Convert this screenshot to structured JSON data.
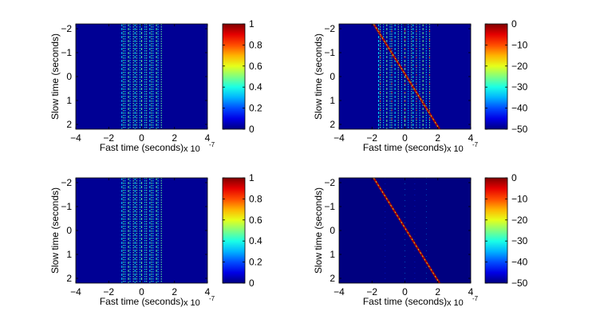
{
  "figure": {
    "title": ""
  },
  "chart_data": [
    {
      "id": "top-left",
      "type": "heatmap",
      "title": "",
      "xlabel": "Fast time (seconds)",
      "ylabel": "Slow time (seconds)",
      "x_exponent_label": "x 10",
      "x_exponent": "-7",
      "xlim": [
        -4,
        4
      ],
      "ylim": [
        -2.2,
        2.2
      ],
      "xticks": [
        -4,
        -2,
        0,
        2,
        4
      ],
      "xtick_labels": [
        "−4",
        "−2",
        "0",
        "2",
        "4"
      ],
      "yticks": [
        -2,
        -1,
        0,
        1,
        2
      ],
      "ytick_labels": [
        "−2",
        "−1",
        "0",
        "1",
        "2"
      ],
      "y_reversed": true,
      "colorbar": {
        "min": 0,
        "max": 1,
        "ticks": [
          0,
          0.2,
          0.4,
          0.6,
          0.8,
          1
        ],
        "tick_labels": [
          "0",
          "0.2",
          "0.4",
          "0.6",
          "0.8",
          "1"
        ]
      },
      "content": {
        "kind": "vertical_stripes",
        "x_range": [
          -1.2,
          1.2
        ],
        "stripe_x": [
          -1.2,
          -1.1,
          -1.0,
          -0.8,
          -0.7,
          -0.5,
          -0.4,
          -0.3,
          -0.1,
          0.0,
          0.2,
          0.3,
          0.5,
          0.6,
          0.7,
          0.9,
          1.0,
          1.2
        ],
        "stripe_value": 0.35,
        "background_value": 0.02
      }
    },
    {
      "id": "top-right",
      "type": "heatmap",
      "title": "",
      "xlabel": "Fast time (seconds)",
      "ylabel": "Slow time (seconds)",
      "x_exponent_label": "x 10",
      "x_exponent": "-7",
      "xlim": [
        -4,
        4
      ],
      "ylim": [
        -2.2,
        2.2
      ],
      "xticks": [
        -4,
        -2,
        0,
        2,
        4
      ],
      "xtick_labels": [
        "−4",
        "−2",
        "0",
        "2",
        "4"
      ],
      "yticks": [
        -2,
        -1,
        0,
        1,
        2
      ],
      "ytick_labels": [
        "−2",
        "−1",
        "0",
        "1",
        "2"
      ],
      "y_reversed": true,
      "colorbar": {
        "min": -50,
        "max": 0,
        "ticks": [
          -50,
          -40,
          -30,
          -20,
          -10,
          0
        ],
        "tick_labels": [
          "−50",
          "−40",
          "−30",
          "−20",
          "−10",
          "0"
        ]
      },
      "content": {
        "kind": "stripes_with_diagonal",
        "x_range": [
          -1.6,
          1.6
        ],
        "stripe_x": [
          -1.6,
          -1.5,
          -1.3,
          -1.1,
          -0.9,
          -0.8,
          -0.6,
          -0.4,
          -0.2,
          0.0,
          0.2,
          0.4,
          0.5,
          0.7,
          0.9,
          1.1,
          1.3,
          1.5
        ],
        "stripe_value": -32,
        "background_value": -49,
        "diagonal": {
          "from": [
            -1.9,
            -2.2
          ],
          "to": [
            2.1,
            2.2
          ],
          "value": -2
        }
      }
    },
    {
      "id": "bottom-left",
      "type": "heatmap",
      "title": "",
      "xlabel": "Fast time (seconds)",
      "ylabel": "Slow time (seconds)",
      "x_exponent_label": "x 10",
      "x_exponent": "-7",
      "xlim": [
        -4,
        4
      ],
      "ylim": [
        -2.2,
        2.2
      ],
      "xticks": [
        -4,
        -2,
        0,
        2,
        4
      ],
      "xtick_labels": [
        "−4",
        "−2",
        "0",
        "2",
        "4"
      ],
      "yticks": [
        -2,
        -1,
        0,
        1,
        2
      ],
      "ytick_labels": [
        "−2",
        "−1",
        "0",
        "1",
        "2"
      ],
      "y_reversed": true,
      "colorbar": {
        "min": 0,
        "max": 1,
        "ticks": [
          0,
          0.2,
          0.4,
          0.6,
          0.8,
          1
        ],
        "tick_labels": [
          "0",
          "0.2",
          "0.4",
          "0.6",
          "0.8",
          "1"
        ]
      },
      "content": {
        "kind": "vertical_stripes",
        "x_range": [
          -1.2,
          1.2
        ],
        "stripe_x": [
          -1.2,
          -1.1,
          -1.0,
          -0.8,
          -0.7,
          -0.5,
          -0.4,
          -0.3,
          -0.1,
          0.0,
          0.2,
          0.3,
          0.5,
          0.6,
          0.7,
          0.9,
          1.0,
          1.2
        ],
        "stripe_value": 0.35,
        "background_value": 0.02
      }
    },
    {
      "id": "bottom-right",
      "type": "heatmap",
      "title": "",
      "xlabel": "Fast time (seconds)",
      "ylabel": "Slow time (seconds)",
      "x_exponent_label": "x 10",
      "x_exponent": "-7",
      "xlim": [
        -4,
        4
      ],
      "ylim": [
        -2.2,
        2.2
      ],
      "xticks": [
        -4,
        -2,
        0,
        2,
        4
      ],
      "xtick_labels": [
        "−4",
        "−2",
        "0",
        "2",
        "4"
      ],
      "yticks": [
        -2,
        -1,
        0,
        1,
        2
      ],
      "ytick_labels": [
        "−2",
        "−1",
        "0",
        "1",
        "2"
      ],
      "y_reversed": true,
      "colorbar": {
        "min": -50,
        "max": 0,
        "ticks": [
          -50,
          -40,
          -30,
          -20,
          -10,
          0
        ],
        "tick_labels": [
          "−50",
          "−40",
          "−30",
          "−20",
          "−10",
          "0"
        ]
      },
      "content": {
        "kind": "diagonal_only",
        "stripe_x": [
          -1.2,
          0.0,
          0.6,
          1.3
        ],
        "stripe_value": -42,
        "background_value": -50,
        "diagonal": {
          "from": [
            -1.9,
            -2.2
          ],
          "to": [
            2.1,
            2.2
          ],
          "value": -2
        }
      }
    }
  ]
}
